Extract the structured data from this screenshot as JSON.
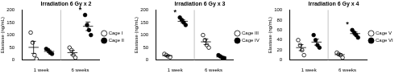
{
  "chart_data": [
    {
      "type": "scatter",
      "title": "Irradiation 6 Gy x 2",
      "y_label": "Elastase (ng/mL)",
      "categories": [
        "1 week",
        "6 weeks"
      ],
      "ylim": [
        0,
        200
      ],
      "yticks": [
        0,
        50,
        100,
        150,
        200
      ],
      "legend": "right",
      "series": [
        {
          "name": "Cage I",
          "marker": "open circle",
          "color": "#000000",
          "values": [
            [
              110,
              70,
              20,
              5
            ],
            [
              50,
              40,
              20,
              10
            ]
          ],
          "mean": [
            51,
            30
          ],
          "error": [
            24,
            9
          ]
        },
        {
          "name": "Cage II",
          "marker": "filled circle",
          "color": "#000000",
          "values": [
            [
              45,
              40,
              30,
              25
            ],
            [
              180,
              140,
              120,
              100
            ]
          ],
          "mean": [
            35,
            135
          ],
          "error": [
            5,
            17
          ]
        }
      ],
      "annotations": [
        {
          "category": "6 weeks",
          "text": "*"
        }
      ]
    },
    {
      "type": "scatter",
      "title": "Irradiation 6 Gy x 3",
      "y_label": "Elastase (ng/mL)",
      "categories": [
        "1 week",
        "6 weeks"
      ],
      "ylim": [
        0,
        200
      ],
      "yticks": [
        0,
        50,
        100,
        150,
        200
      ],
      "legend": "right",
      "series": [
        {
          "name": "Cage III",
          "marker": "open circle",
          "color": "#000000",
          "values": [
            [
              25,
              20,
              15,
              12
            ],
            [
              100,
              80,
              60,
              50
            ]
          ],
          "mean": [
            18,
            73
          ],
          "error": [
            3,
            11
          ]
        },
        {
          "name": "Cage IV",
          "marker": "filled circle",
          "color": "#000000",
          "values": [
            [
              170,
              160,
              150,
              140
            ],
            [
              20,
              15,
              10,
              8
            ]
          ],
          "mean": [
            155,
            13
          ],
          "error": [
            6,
            3
          ]
        }
      ],
      "annotations": [
        {
          "category": "1 week",
          "text": "*"
        }
      ]
    },
    {
      "type": "scatter",
      "title": "Irradiation 6 Gy x 4",
      "y_label": "Elastase (ng/mL)",
      "categories": [
        "1 week",
        "6 weeks"
      ],
      "ylim": [
        0,
        100
      ],
      "yticks": [
        0,
        20,
        40,
        60,
        80,
        100
      ],
      "legend": "right",
      "series": [
        {
          "name": "Cage V",
          "marker": "open circle",
          "color": "#000000",
          "values": [
            [
              40,
              30,
              20,
              10
            ],
            [
              15,
              12,
              10,
              5
            ]
          ],
          "mean": [
            25,
            11
          ],
          "error": [
            6,
            2
          ]
        },
        {
          "name": "Cage VI",
          "marker": "filled circle",
          "color": "#000000",
          "values": [
            [
              50,
              40,
              30,
              25
            ],
            [
              60,
              55,
              50,
              45
            ]
          ],
          "mean": [
            36,
            53
          ],
          "error": [
            6,
            3
          ]
        }
      ],
      "annotations": [
        {
          "category": "6 weeks",
          "text": "*"
        }
      ]
    }
  ]
}
